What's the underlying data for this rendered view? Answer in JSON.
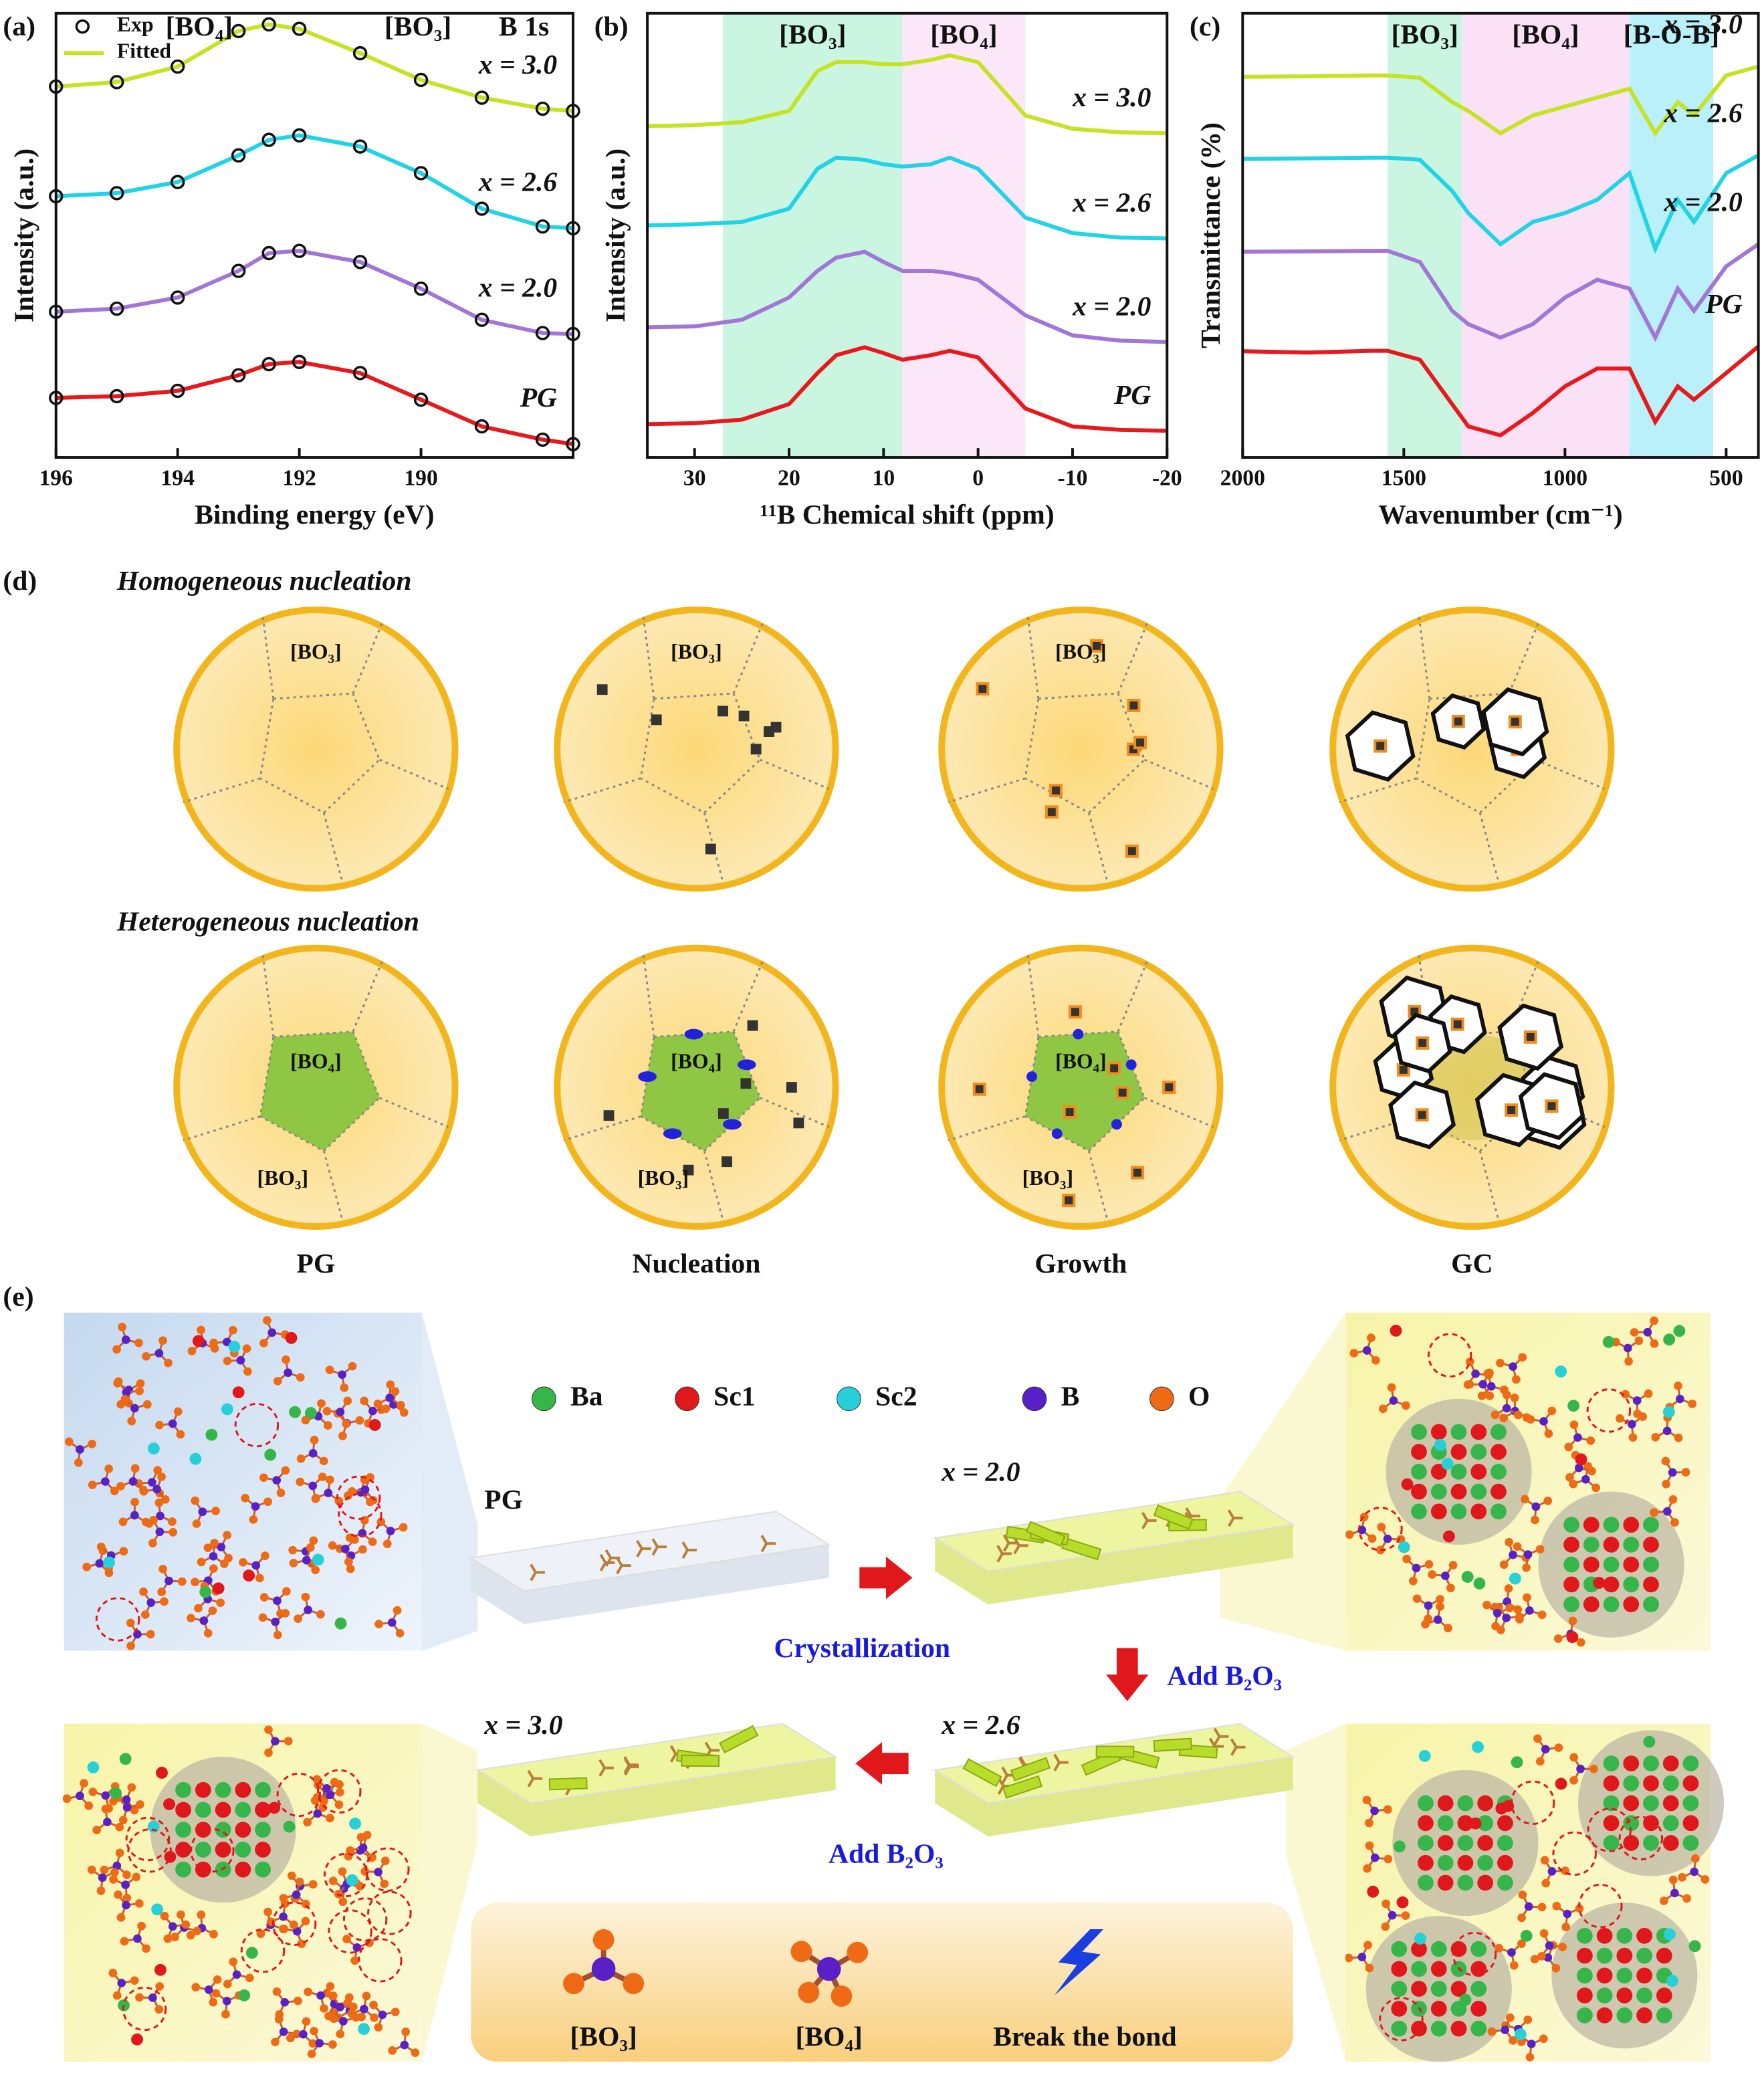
{
  "chart_data": [
    {
      "type": "line",
      "panel_label": "(a)",
      "xlabel": "Binding energy (eV)",
      "ylabel": "Intensity (a.u.)",
      "x": [
        196,
        195,
        194,
        193,
        192.5,
        192,
        191,
        190,
        189,
        188,
        187.5
      ],
      "xlim": [
        196,
        187.5
      ],
      "xticks": [
        196,
        194,
        192,
        190
      ],
      "ylim": [
        0,
        100
      ],
      "markers": true,
      "legend_labels": [
        "Exp",
        "Fitted"
      ],
      "annotations": [
        "[BO₄]",
        "[BO₃]",
        "B 1s"
      ],
      "series": [
        {
          "name": "x = 3.0",
          "color": "#c5e323",
          "values": [
            83.5,
            84.5,
            88,
            96,
            97.5,
            96.5,
            91,
            85,
            81,
            78.5,
            78
          ]
        },
        {
          "name": "x = 2.6",
          "color": "#22d3e6",
          "values": [
            58.8,
            59.5,
            62,
            68,
            71.5,
            72.5,
            70,
            64,
            56,
            52,
            51.6
          ]
        },
        {
          "name": "x = 2.0",
          "color": "#a276d6",
          "values": [
            32.8,
            33.5,
            36,
            42,
            46,
            46.5,
            44,
            38,
            31,
            28,
            27.8
          ]
        },
        {
          "name": "PG",
          "color": "#e8191c",
          "values": [
            13.4,
            13.8,
            15,
            18.5,
            21,
            21.5,
            19,
            13,
            7,
            4,
            3
          ]
        }
      ]
    },
    {
      "type": "line",
      "panel_label": "(b)",
      "xlabel": "¹¹B Chemical shift (ppm)",
      "ylabel": "Intensity (a.u.)",
      "x": [
        35,
        30,
        25,
        20,
        17,
        15,
        12,
        10,
        8,
        5,
        3,
        0,
        -5,
        -10,
        -15,
        -20
      ],
      "xlim": [
        35,
        -20
      ],
      "xticks": [
        30,
        20,
        10,
        0,
        -10,
        -20
      ],
      "ylim": [
        0,
        100
      ],
      "bands": [
        {
          "label": "[BO₃]",
          "from": 27,
          "to": 8,
          "color": "#c9f5e1"
        },
        {
          "label": "[BO₄]",
          "from": 8,
          "to": -5,
          "color": "#fbe7f8"
        }
      ],
      "series": [
        {
          "name": "x = 3.0",
          "color": "#c5e323",
          "values": [
            74.6,
            74.8,
            75.5,
            78,
            87,
            89,
            89,
            88.5,
            88.5,
            89.5,
            90.5,
            89,
            77,
            74,
            73.2,
            73
          ]
        },
        {
          "name": "x = 2.6",
          "color": "#22d3e6",
          "values": [
            52.2,
            52.5,
            53,
            56,
            65,
            67.5,
            67,
            66,
            65.5,
            66,
            67.5,
            65,
            54,
            50.5,
            49.5,
            49.3
          ]
        },
        {
          "name": "x = 2.0",
          "color": "#a276d6",
          "values": [
            29.3,
            29.5,
            31,
            36,
            42,
            45,
            46.3,
            44,
            42,
            42,
            41.5,
            40,
            32,
            27.5,
            26.3,
            26
          ]
        },
        {
          "name": "PG",
          "color": "#e8191c",
          "values": [
            7.5,
            7.7,
            8.5,
            12,
            19,
            23,
            24.8,
            23.5,
            22,
            23,
            24,
            22.5,
            11,
            7,
            6.2,
            6
          ]
        }
      ]
    },
    {
      "type": "line",
      "panel_label": "(c)",
      "xlabel": "Wavenumber (cm⁻¹)",
      "ylabel": "Transmittance (%)",
      "x": [
        2000,
        1800,
        1600,
        1550,
        1450,
        1350,
        1300,
        1200,
        1100,
        1000,
        900,
        800,
        720,
        650,
        600,
        500,
        400
      ],
      "xlim": [
        2000,
        400
      ],
      "xticks": [
        2000,
        1500,
        1000,
        500
      ],
      "ylim": [
        0,
        100
      ],
      "bands": [
        {
          "label": "[BO₃]",
          "from": 1550,
          "to": 1320,
          "color": "#c9f5e1"
        },
        {
          "label": "[BO₄]",
          "from": 1320,
          "to": 800,
          "color": "#fbe1f6"
        },
        {
          "label": "[B-O-B]",
          "from": 800,
          "to": 540,
          "color": "#b9f0f9"
        }
      ],
      "series": [
        {
          "name": "x = 3.0",
          "color": "#c5e323",
          "values": [
            85.7,
            85.8,
            86,
            86,
            85.5,
            80,
            78,
            73,
            77,
            79,
            81,
            83,
            73,
            80,
            77,
            86,
            88
          ]
        },
        {
          "name": "x = 2.6",
          "color": "#22d3e6",
          "values": [
            67.2,
            67.3,
            67.5,
            67.5,
            67,
            60,
            55,
            48,
            53,
            55,
            58,
            64,
            47,
            58,
            53,
            64,
            68
          ]
        },
        {
          "name": "x = 2.0",
          "color": "#a276d6",
          "values": [
            46.3,
            46.4,
            46.5,
            46.5,
            44,
            33,
            30,
            27,
            30,
            36,
            40,
            38,
            27,
            38,
            33,
            43,
            48
          ]
        },
        {
          "name": "PG",
          "color": "#e8191c",
          "values": [
            23.9,
            23.6,
            24,
            24,
            22,
            12,
            7,
            5,
            10,
            16,
            20,
            20,
            8,
            16,
            13,
            19,
            25
          ]
        }
      ]
    }
  ],
  "diagram": {
    "panel_d": {
      "label": "(d)",
      "rows": [
        "Homogeneous nucleation",
        "Heterogeneous nucleation"
      ],
      "stages": [
        "PG",
        "Nucleation",
        "Growth",
        "GC"
      ],
      "unit_bo3": "[BO₃]",
      "unit_bo4": "[BO₄]"
    },
    "panel_e": {
      "label": "(e)",
      "legend": [
        "Ba",
        "Sc1",
        "Sc2",
        "B",
        "O"
      ],
      "samples": [
        "PG",
        "x = 2.0",
        "x = 2.6",
        "x = 3.0"
      ],
      "steps": [
        "Crystallization",
        "Add B₂O₃",
        "Add B₂O₃"
      ],
      "key": [
        "[BO₃]",
        "[BO₄]",
        "Break the bond"
      ]
    }
  }
}
